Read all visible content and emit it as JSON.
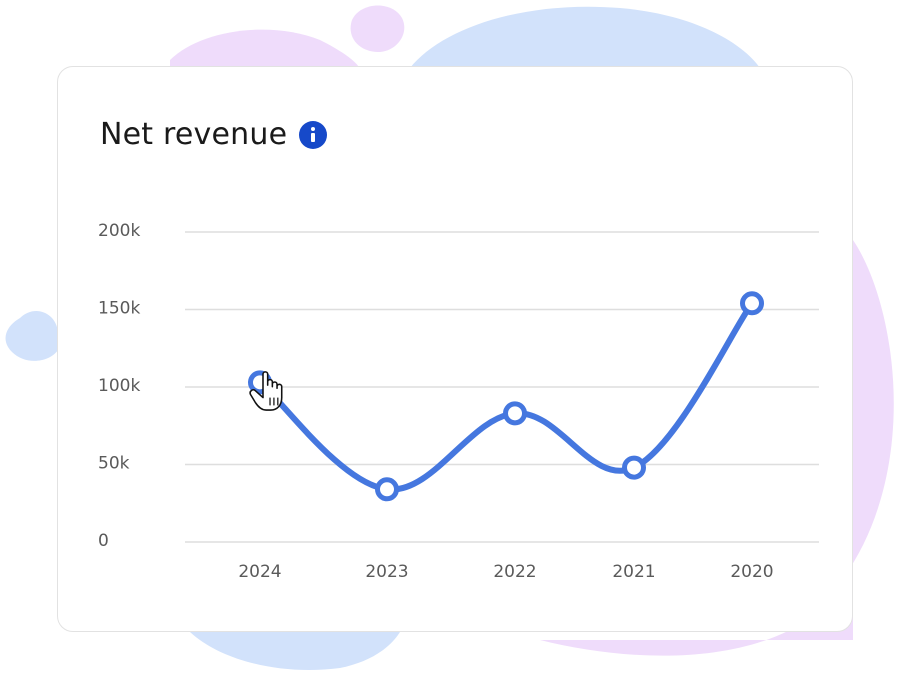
{
  "card": {
    "title": "Net revenue",
    "info_icon": "info-icon"
  },
  "colors": {
    "line": "#4577df",
    "gridline": "#dedede",
    "info_accent": "#1649c9",
    "blob_purple": "#efdcfb",
    "blob_blue": "#d2e2fb"
  },
  "cursor_icon": "hand-pointer-icon",
  "chart_data": {
    "type": "line",
    "title": "Net revenue",
    "xlabel": "",
    "ylabel": "",
    "categories": [
      "2024",
      "2023",
      "2022",
      "2021",
      "2020"
    ],
    "series": [
      {
        "values": [
          103000,
          34000,
          83000,
          48000,
          154000
        ]
      }
    ],
    "ylim": [
      0,
      200000
    ],
    "yticks": [
      0,
      50000,
      100000,
      150000,
      200000
    ],
    "ytick_labels": [
      "0",
      "50k",
      "100k",
      "150k",
      "200k"
    ],
    "grid": true,
    "legend": "none"
  }
}
